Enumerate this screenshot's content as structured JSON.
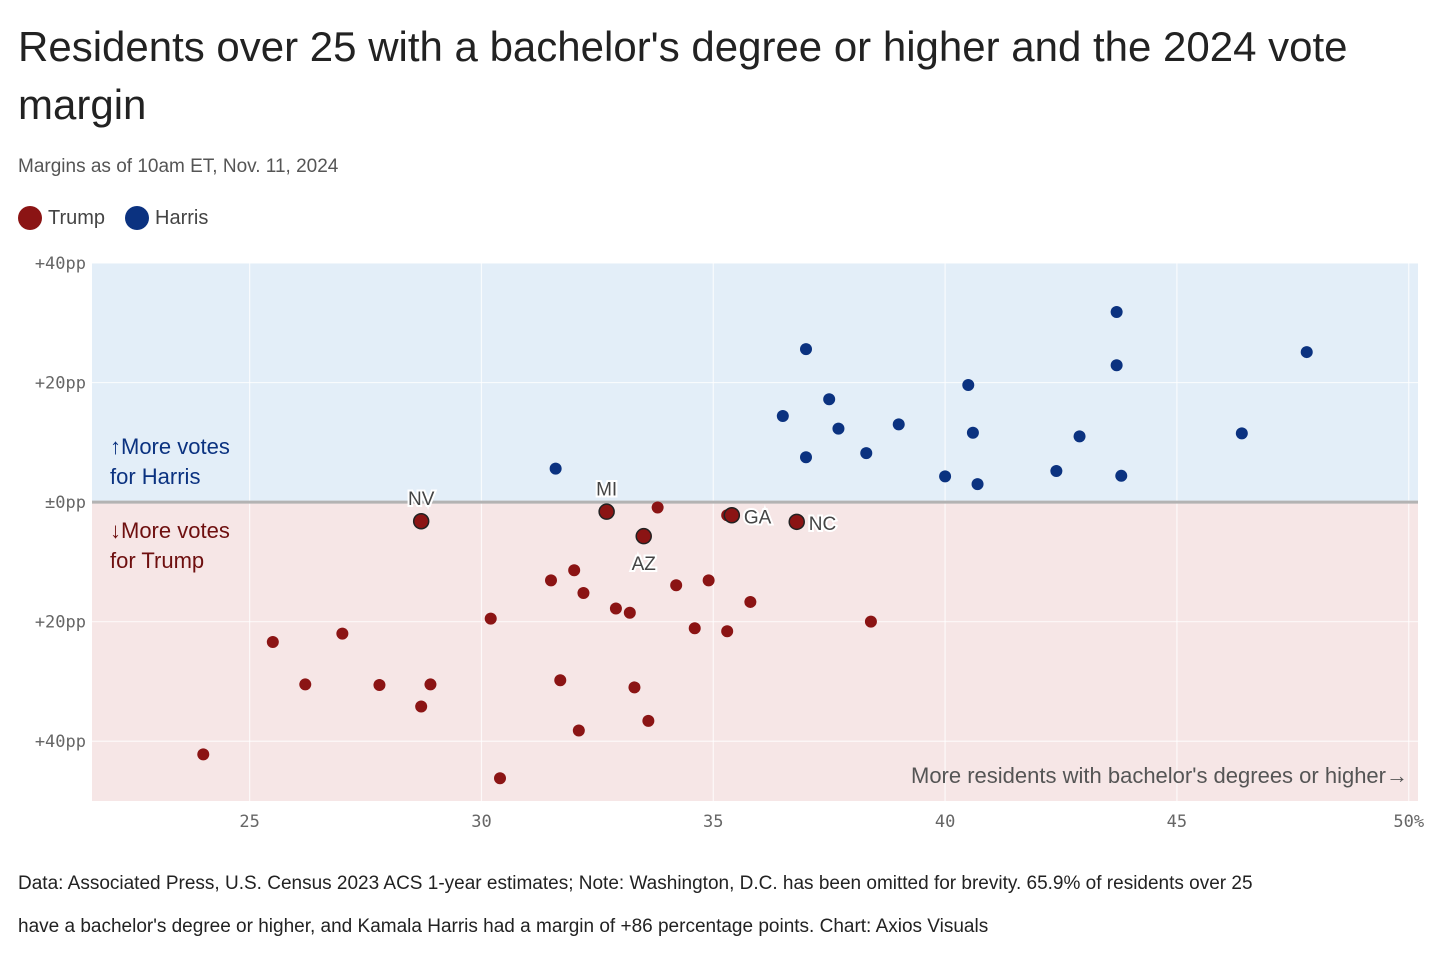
{
  "title": "Residents over 25 with a bachelor's degree or higher and the 2024 vote margin",
  "subtitle": "Margins as of 10am ET, Nov. 11, 2024",
  "legend": [
    {
      "label": "Trump",
      "color": "#8b1414"
    },
    {
      "label": "Harris",
      "color": "#0b3280"
    }
  ],
  "footer": {
    "line1": "Data: Associated Press, U.S. Census 2023 ACS 1-year estimates; Note: Washington, D.C. has been omitted for brevity. 65.9% of residents over 25",
    "line2": "have a bachelor's degree or higher, and Kamala Harris had a margin of +86 percentage points. Chart: Axios Visuals"
  },
  "chart_data": {
    "type": "scatter",
    "xlabel": "More residents with bachelor's degrees or higher→",
    "xlim": [
      21.6,
      50.2
    ],
    "ylim": [
      -50,
      40
    ],
    "x_ticks": [
      {
        "value": 25,
        "label": "25"
      },
      {
        "value": 30,
        "label": "30"
      },
      {
        "value": 35,
        "label": "35"
      },
      {
        "value": 40,
        "label": "40"
      },
      {
        "value": 45,
        "label": "45"
      },
      {
        "value": 50,
        "label": "50%"
      }
    ],
    "y_ticks": [
      {
        "value": 40,
        "label": "+40pp"
      },
      {
        "value": 20,
        "label": "+20pp"
      },
      {
        "value": 0,
        "label": "±0pp"
      },
      {
        "value": -20,
        "label": "+20pp"
      },
      {
        "value": -40,
        "label": "+40pp"
      }
    ],
    "region_labels": {
      "harris_line1": "↑More votes",
      "harris_line2": "for Harris",
      "trump_line1": "↓More votes",
      "trump_line2": "for Trump"
    },
    "background_colors": {
      "harris": "#e3eef8",
      "trump": "#f6e6e6"
    },
    "series": [
      {
        "name": "Harris",
        "color": "#0b3280",
        "points": [
          {
            "x": 31.6,
            "y": 5.6
          },
          {
            "x": 36.5,
            "y": 14.4
          },
          {
            "x": 37.0,
            "y": 25.6
          },
          {
            "x": 37.0,
            "y": 7.5
          },
          {
            "x": 37.5,
            "y": 17.2
          },
          {
            "x": 37.7,
            "y": 12.3
          },
          {
            "x": 38.3,
            "y": 8.2
          },
          {
            "x": 39.0,
            "y": 13.0
          },
          {
            "x": 40.0,
            "y": 4.3
          },
          {
            "x": 40.5,
            "y": 19.6
          },
          {
            "x": 40.6,
            "y": 11.6
          },
          {
            "x": 40.7,
            "y": 3.0
          },
          {
            "x": 42.4,
            "y": 5.2
          },
          {
            "x": 42.9,
            "y": 11.0
          },
          {
            "x": 43.7,
            "y": 31.8
          },
          {
            "x": 43.7,
            "y": 22.9
          },
          {
            "x": 43.8,
            "y": 4.4
          },
          {
            "x": 46.4,
            "y": 11.5
          },
          {
            "x": 47.8,
            "y": 25.1
          }
        ]
      },
      {
        "name": "Trump",
        "color": "#8b1414",
        "points": [
          {
            "x": 24.0,
            "y": -42.2
          },
          {
            "x": 25.5,
            "y": -23.4
          },
          {
            "x": 26.2,
            "y": -30.5
          },
          {
            "x": 27.0,
            "y": -22.0
          },
          {
            "x": 27.8,
            "y": -30.6
          },
          {
            "x": 28.7,
            "y": -34.2
          },
          {
            "x": 28.9,
            "y": -30.5
          },
          {
            "x": 28.7,
            "y": -3.2,
            "label": "NV"
          },
          {
            "x": 30.2,
            "y": -19.5
          },
          {
            "x": 30.4,
            "y": -46.2
          },
          {
            "x": 31.5,
            "y": -13.1
          },
          {
            "x": 31.7,
            "y": -29.8
          },
          {
            "x": 32.0,
            "y": -11.4
          },
          {
            "x": 32.1,
            "y": -38.2
          },
          {
            "x": 32.2,
            "y": -15.2
          },
          {
            "x": 32.7,
            "y": -1.6,
            "label": "MI"
          },
          {
            "x": 32.9,
            "y": -17.8
          },
          {
            "x": 33.2,
            "y": -18.5
          },
          {
            "x": 33.3,
            "y": -31.0
          },
          {
            "x": 33.5,
            "y": -5.7,
            "label": "AZ"
          },
          {
            "x": 33.6,
            "y": -36.6
          },
          {
            "x": 33.8,
            "y": -0.9
          },
          {
            "x": 34.2,
            "y": -13.9
          },
          {
            "x": 34.6,
            "y": -21.1
          },
          {
            "x": 34.9,
            "y": -13.1
          },
          {
            "x": 35.3,
            "y": -2.2
          },
          {
            "x": 35.3,
            "y": -21.6
          },
          {
            "x": 35.4,
            "y": -2.2,
            "label": "GA"
          },
          {
            "x": 35.8,
            "y": -16.7
          },
          {
            "x": 36.8,
            "y": -3.3,
            "label": "NC"
          },
          {
            "x": 38.4,
            "y": -20.0
          }
        ]
      }
    ]
  }
}
